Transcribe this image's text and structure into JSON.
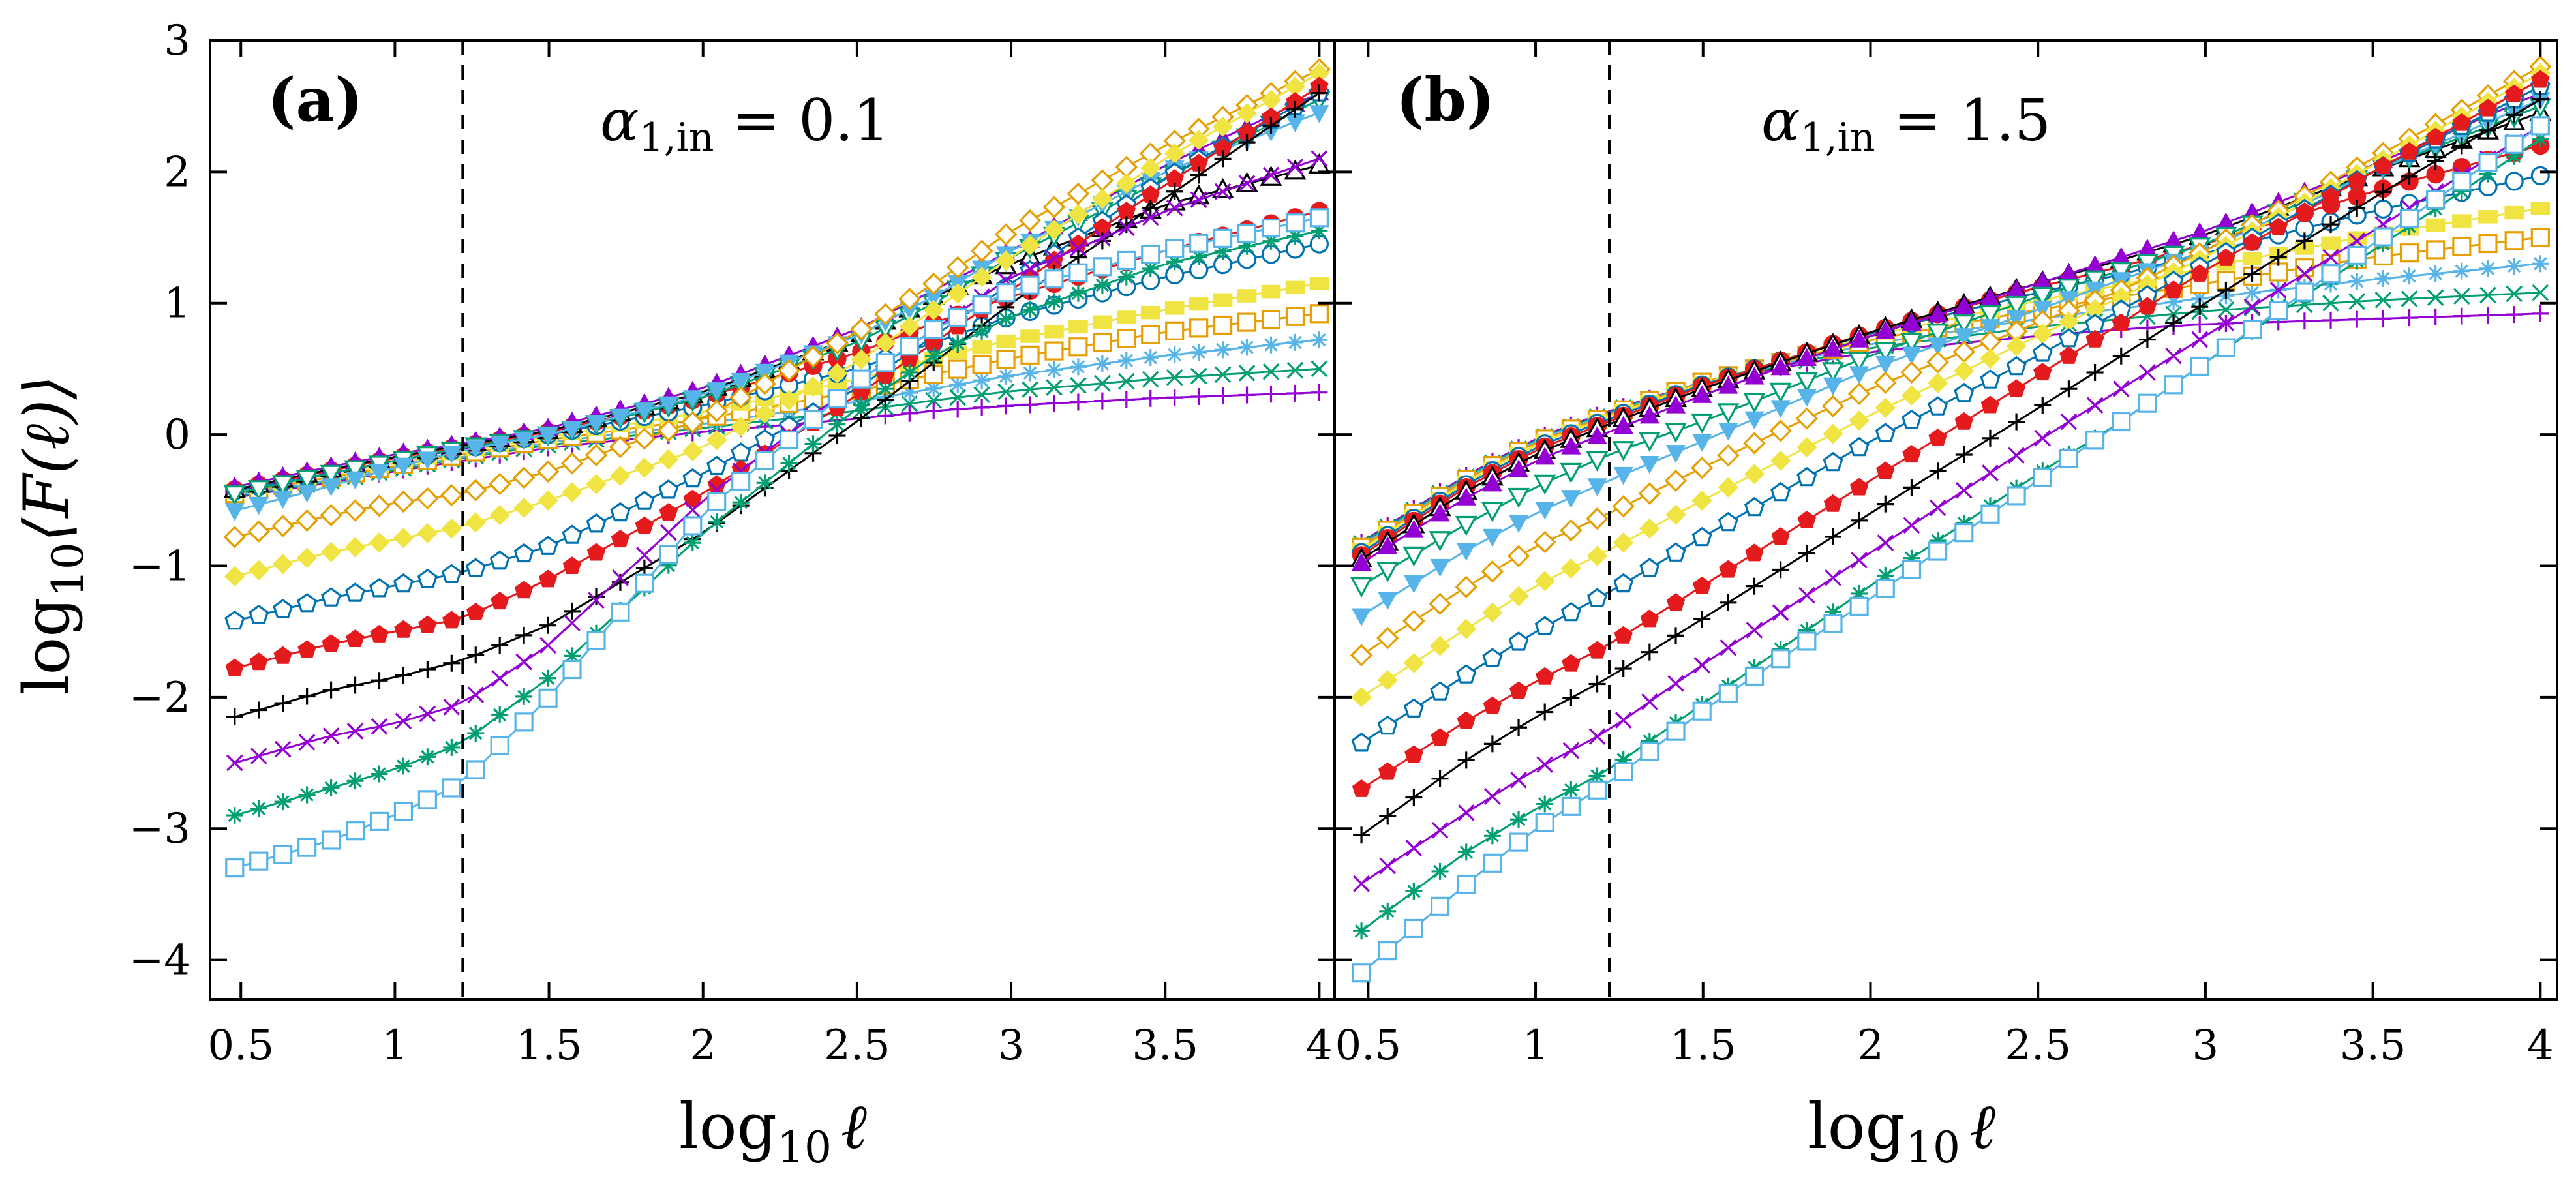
{
  "figure": {
    "ylabel_main": "log",
    "ylabel_sub": "10",
    "ylabel_rest": "⟨F(ℓ)⟩",
    "xlabel_main": "log",
    "xlabel_sub": "10",
    "xlabel_rest": "ℓ"
  },
  "colors": {
    "sky": "#56B4E9",
    "green": "#009E73",
    "purple": "#9400D3",
    "black": "#000000",
    "red": "#E41A1C",
    "blue": "#0072B2",
    "yellow": "#F0E442",
    "orange": "#E69F00",
    "axes": "#000000"
  },
  "chart_data": [
    {
      "type": "line",
      "panel": "(a)",
      "annotation": "α1,in = 0.1",
      "annotation_main": "α",
      "annotation_sub": "1,in",
      "annotation_rest": " = 0.1",
      "xlim": [
        0.4,
        4.05
      ],
      "ylim": [
        -4.3,
        3
      ],
      "xticks": [
        0.5,
        1,
        1.5,
        2,
        2.5,
        3,
        3.5,
        4
      ],
      "xtick_labels": [
        "0.5",
        "1",
        "1.5",
        "2",
        "2.5",
        "3",
        "3.5",
        "4"
      ],
      "yticks": [
        -4,
        -3,
        -2,
        -1,
        0,
        1,
        2,
        3
      ],
      "ytick_labels": [
        "−4",
        "−3",
        "−2",
        "−1",
        "0",
        "1",
        "2",
        "3"
      ],
      "vline_x": 1.22,
      "x": [
        0.48,
        0.78,
        1.0,
        1.22,
        1.5,
        2.0,
        2.5,
        2.75,
        3.0,
        3.5,
        4.0
      ],
      "series": [
        {
          "name": "s1",
          "marker": "square-open",
          "color": "sky",
          "y": [
            -3.3,
            -3.1,
            -2.9,
            -2.65,
            -2.0,
            -0.6,
            0.4,
            0.8,
            1.1,
            1.4,
            1.65
          ]
        },
        {
          "name": "s2",
          "marker": "asterisk",
          "color": "green",
          "y": [
            -2.9,
            -2.7,
            -2.55,
            -2.35,
            -1.85,
            -0.75,
            0.2,
            0.6,
            0.9,
            1.3,
            1.55
          ]
        },
        {
          "name": "s3",
          "marker": "x",
          "color": "purple",
          "y": [
            -2.5,
            -2.3,
            -2.2,
            -2.05,
            -1.6,
            -0.5,
            0.4,
            0.8,
            1.2,
            1.7,
            2.1
          ]
        },
        {
          "name": "s4",
          "marker": "plus",
          "color": "black",
          "y": [
            -2.15,
            -1.95,
            -1.85,
            -1.72,
            -1.45,
            -0.75,
            0.1,
            0.55,
            1.0,
            1.8,
            2.6
          ]
        },
        {
          "name": "s5",
          "marker": "pentagon-filled",
          "color": "red",
          "y": [
            -1.78,
            -1.6,
            -1.5,
            -1.4,
            -1.1,
            -0.45,
            0.3,
            0.7,
            1.1,
            1.9,
            2.65
          ]
        },
        {
          "name": "s6",
          "marker": "pentagon-open",
          "color": "blue",
          "y": [
            -1.42,
            -1.25,
            -1.15,
            -1.05,
            -0.85,
            -0.3,
            0.35,
            0.75,
            1.15,
            1.95,
            2.6
          ]
        },
        {
          "name": "s7",
          "marker": "diamond-filled",
          "color": "yellow",
          "y": [
            -1.08,
            -0.9,
            -0.8,
            -0.7,
            -0.5,
            -0.1,
            0.55,
            0.95,
            1.35,
            2.1,
            2.75
          ]
        },
        {
          "name": "s8",
          "marker": "diamond-open",
          "color": "orange",
          "y": [
            -0.78,
            -0.62,
            -0.52,
            -0.45,
            -0.28,
            0.12,
            0.78,
            1.15,
            1.55,
            2.2,
            2.78
          ]
        },
        {
          "name": "s9",
          "marker": "triangle-down-filled",
          "color": "sky",
          "y": [
            -0.58,
            -0.4,
            -0.25,
            -0.12,
            0.0,
            0.3,
            0.75,
            1.05,
            1.4,
            2.0,
            2.45
          ]
        },
        {
          "name": "s10",
          "marker": "triangle-down-open",
          "color": "green",
          "y": [
            -0.45,
            -0.3,
            -0.2,
            -0.1,
            0.0,
            0.28,
            0.7,
            1.0,
            1.35,
            1.95,
            2.55
          ]
        },
        {
          "name": "s11",
          "marker": "triangle-filled",
          "color": "purple",
          "y": [
            -0.4,
            -0.25,
            -0.15,
            -0.07,
            0.05,
            0.35,
            0.8,
            1.1,
            1.4,
            2.05,
            2.6
          ]
        },
        {
          "name": "s12",
          "marker": "triangle-open",
          "color": "black",
          "y": [
            -0.42,
            -0.27,
            -0.17,
            -0.08,
            0.03,
            0.32,
            0.75,
            1.05,
            1.3,
            1.75,
            2.05
          ]
        },
        {
          "name": "s13",
          "marker": "circle-filled",
          "color": "red",
          "y": [
            -0.42,
            -0.28,
            -0.18,
            -0.09,
            0.02,
            0.28,
            0.62,
            0.85,
            1.05,
            1.4,
            1.7
          ]
        },
        {
          "name": "s14",
          "marker": "circle-open",
          "color": "blue",
          "y": [
            -0.43,
            -0.3,
            -0.2,
            -0.11,
            0.0,
            0.22,
            0.5,
            0.7,
            0.9,
            1.2,
            1.45
          ]
        },
        {
          "name": "s15",
          "marker": "rect-filled",
          "color": "yellow",
          "y": [
            -0.44,
            -0.31,
            -0.22,
            -0.13,
            -0.02,
            0.17,
            0.42,
            0.58,
            0.72,
            0.95,
            1.15
          ]
        },
        {
          "name": "s16",
          "marker": "square-open",
          "color": "orange",
          "y": [
            -0.45,
            -0.33,
            -0.24,
            -0.15,
            -0.04,
            0.12,
            0.33,
            0.46,
            0.58,
            0.78,
            0.92
          ]
        },
        {
          "name": "s17",
          "marker": "asterisk",
          "color": "sky",
          "y": [
            -0.46,
            -0.35,
            -0.26,
            -0.17,
            -0.06,
            0.08,
            0.25,
            0.35,
            0.45,
            0.6,
            0.72
          ]
        },
        {
          "name": "s18",
          "marker": "x",
          "color": "green",
          "y": [
            -0.47,
            -0.36,
            -0.27,
            -0.18,
            -0.08,
            0.05,
            0.18,
            0.26,
            0.33,
            0.43,
            0.5
          ]
        },
        {
          "name": "s19",
          "marker": "plus",
          "color": "purple",
          "y": [
            -0.48,
            -0.37,
            -0.28,
            -0.2,
            -0.1,
            0.02,
            0.12,
            0.18,
            0.22,
            0.28,
            0.32
          ]
        }
      ]
    },
    {
      "type": "line",
      "panel": "(b)",
      "annotation": "α1,in = 1.5",
      "annotation_main": "α",
      "annotation_sub": "1,in",
      "annotation_rest": " = 1.5",
      "xlim": [
        0.4,
        4.05
      ],
      "ylim": [
        -4.3,
        3
      ],
      "xticks": [
        0.5,
        1,
        1.5,
        2,
        2.5,
        3,
        3.5,
        4
      ],
      "xtick_labels": [
        "0.5",
        "1",
        "1.5",
        "2",
        "2.5",
        "3",
        "3.5",
        "4"
      ],
      "yticks": [
        -4,
        -3,
        -2,
        -1,
        0,
        1,
        2,
        3
      ],
      "ytick_labels": [
        "",
        "",
        "",
        "",
        "",
        "",
        "",
        ""
      ],
      "vline_x": 1.22,
      "x": [
        0.48,
        0.78,
        1.0,
        1.22,
        1.5,
        2.0,
        2.5,
        2.75,
        3.0,
        3.5,
        4.0
      ],
      "series": [
        {
          "name": "s1",
          "marker": "square-open",
          "color": "sky",
          "y": [
            -4.1,
            -3.45,
            -3.0,
            -2.65,
            -2.1,
            -1.25,
            -0.35,
            0.1,
            0.55,
            1.45,
            2.35
          ]
        },
        {
          "name": "s2",
          "marker": "asterisk",
          "color": "green",
          "y": [
            -3.78,
            -3.2,
            -2.85,
            -2.55,
            -2.05,
            -1.15,
            -0.3,
            0.1,
            0.55,
            1.4,
            2.25
          ]
        },
        {
          "name": "s3",
          "marker": "x",
          "color": "purple",
          "y": [
            -3.42,
            -2.9,
            -2.55,
            -2.25,
            -1.75,
            -0.9,
            -0.05,
            0.35,
            0.75,
            1.55,
            2.35
          ]
        },
        {
          "name": "s4",
          "marker": "plus",
          "color": "black",
          "y": [
            -3.05,
            -2.5,
            -2.15,
            -1.85,
            -1.4,
            -0.6,
            0.2,
            0.6,
            1.0,
            1.8,
            2.55
          ]
        },
        {
          "name": "s5",
          "marker": "pentagon-filled",
          "color": "red",
          "y": [
            -2.7,
            -2.2,
            -1.88,
            -1.6,
            -1.15,
            -0.35,
            0.45,
            0.85,
            1.25,
            2.0,
            2.7
          ]
        },
        {
          "name": "s6",
          "marker": "pentagon-open",
          "color": "blue",
          "y": [
            -2.35,
            -1.85,
            -1.5,
            -1.2,
            -0.78,
            -0.05,
            0.6,
            0.95,
            1.3,
            2.0,
            2.65
          ]
        },
        {
          "name": "s7",
          "marker": "diamond-filled",
          "color": "yellow",
          "y": [
            -2.0,
            -1.5,
            -1.15,
            -0.88,
            -0.5,
            0.15,
            0.75,
            1.05,
            1.35,
            2.05,
            2.75
          ]
        },
        {
          "name": "s8",
          "marker": "diamond-open",
          "color": "orange",
          "y": [
            -1.68,
            -1.18,
            -0.85,
            -0.6,
            -0.25,
            0.35,
            0.85,
            1.1,
            1.4,
            2.1,
            2.8
          ]
        },
        {
          "name": "s9",
          "marker": "triangle-down-filled",
          "color": "sky",
          "y": [
            -1.38,
            -0.9,
            -0.6,
            -0.35,
            -0.05,
            0.5,
            0.95,
            1.18,
            1.4,
            2.0,
            2.55
          ]
        },
        {
          "name": "s10",
          "marker": "triangle-down-open",
          "color": "green",
          "y": [
            -1.15,
            -0.7,
            -0.4,
            -0.15,
            0.1,
            0.6,
            1.05,
            1.25,
            1.45,
            2.0,
            2.5
          ]
        },
        {
          "name": "s11",
          "marker": "triangle-filled",
          "color": "purple",
          "y": [
            -0.98,
            -0.5,
            -0.2,
            0.02,
            0.3,
            0.75,
            1.15,
            1.35,
            1.55,
            2.05,
            2.6
          ]
        },
        {
          "name": "s12",
          "marker": "triangle-open",
          "color": "black",
          "y": [
            -0.95,
            -0.45,
            -0.15,
            0.08,
            0.35,
            0.78,
            1.15,
            1.33,
            1.52,
            2.0,
            2.45
          ]
        },
        {
          "name": "s13",
          "marker": "circle-filled",
          "color": "red",
          "y": [
            -0.92,
            -0.42,
            -0.12,
            0.1,
            0.37,
            0.78,
            1.12,
            1.28,
            1.45,
            1.85,
            2.2
          ]
        },
        {
          "name": "s14",
          "marker": "circle-open",
          "color": "blue",
          "y": [
            -0.9,
            -0.4,
            -0.1,
            0.12,
            0.38,
            0.77,
            1.08,
            1.22,
            1.38,
            1.7,
            1.97
          ]
        },
        {
          "name": "s15",
          "marker": "rect-filled",
          "color": "yellow",
          "y": [
            -0.88,
            -0.38,
            -0.08,
            0.14,
            0.39,
            0.75,
            1.02,
            1.14,
            1.27,
            1.52,
            1.72
          ]
        },
        {
          "name": "s16",
          "marker": "square-open",
          "color": "orange",
          "y": [
            -0.86,
            -0.36,
            -0.06,
            0.15,
            0.4,
            0.72,
            0.95,
            1.05,
            1.15,
            1.35,
            1.5
          ]
        },
        {
          "name": "s17",
          "marker": "asterisk",
          "color": "sky",
          "y": [
            -0.85,
            -0.35,
            -0.05,
            0.16,
            0.4,
            0.69,
            0.88,
            0.96,
            1.04,
            1.18,
            1.3
          ]
        },
        {
          "name": "s18",
          "marker": "x",
          "color": "green",
          "y": [
            -0.83,
            -0.34,
            -0.04,
            0.17,
            0.4,
            0.66,
            0.82,
            0.88,
            0.94,
            1.02,
            1.08
          ]
        },
        {
          "name": "s19",
          "marker": "plus",
          "color": "purple",
          "y": [
            -0.82,
            -0.33,
            -0.03,
            0.18,
            0.4,
            0.63,
            0.75,
            0.8,
            0.84,
            0.88,
            0.92
          ]
        }
      ]
    }
  ]
}
